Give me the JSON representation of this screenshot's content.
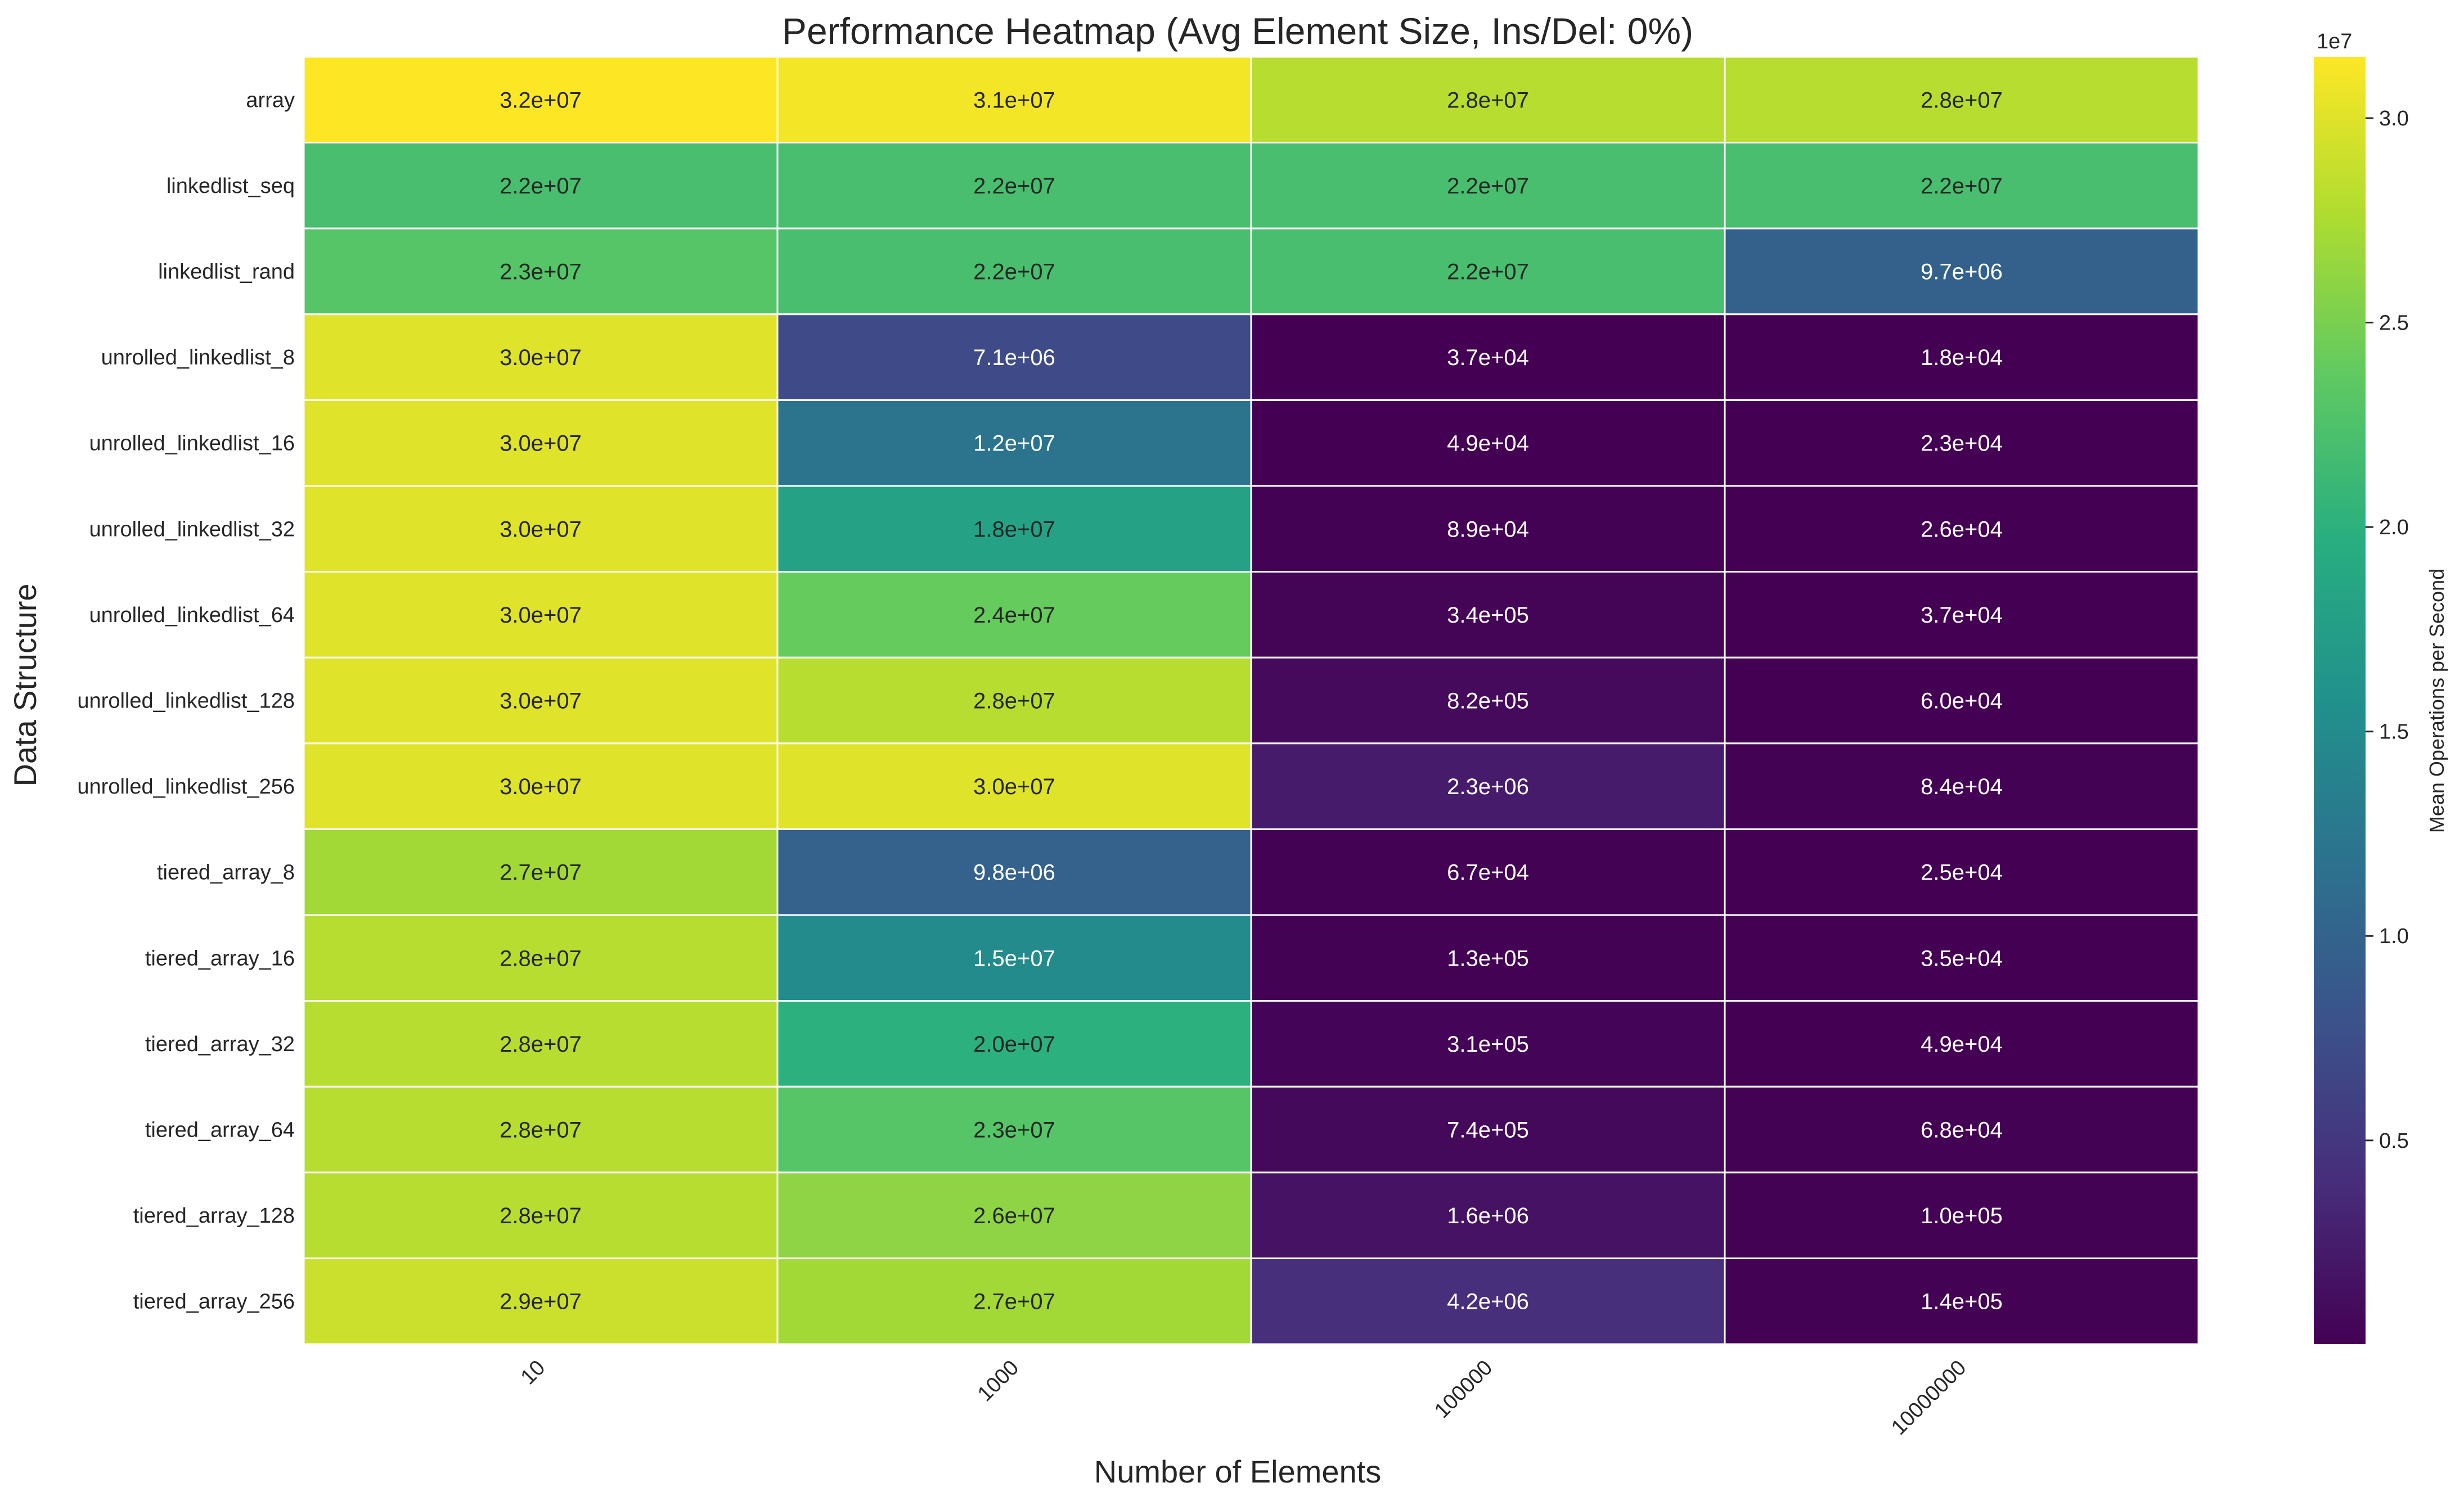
{
  "chart_data": {
    "type": "heatmap",
    "title": "Performance Heatmap (Avg Element Size, Ins/Del: 0%)",
    "xlabel": "Number of Elements",
    "ylabel": "Data Structure",
    "colorbar_label": "Mean Operations per Second",
    "colorbar_exponent": "1e7",
    "colorbar_ticks": [
      "0.5",
      "1.0",
      "1.5",
      "2.0",
      "2.5",
      "3.0"
    ],
    "colorbar_tick_values": [
      5000000,
      10000000,
      15000000,
      20000000,
      25000000,
      30000000
    ],
    "colormap": "viridis",
    "vmin": 18000,
    "vmax": 31500000,
    "grid": false,
    "x_categories": [
      "10",
      "1000",
      "100000",
      "10000000"
    ],
    "y_categories": [
      "array",
      "linkedlist_seq",
      "linkedlist_rand",
      "unrolled_linkedlist_8",
      "unrolled_linkedlist_16",
      "unrolled_linkedlist_32",
      "unrolled_linkedlist_64",
      "unrolled_linkedlist_128",
      "unrolled_linkedlist_256",
      "tiered_array_8",
      "tiered_array_16",
      "tiered_array_32",
      "tiered_array_64",
      "tiered_array_128",
      "tiered_array_256"
    ],
    "values": [
      [
        32000000,
        31000000,
        28000000,
        28000000
      ],
      [
        22000000,
        22000000,
        22000000,
        22000000
      ],
      [
        23000000,
        22000000,
        22000000,
        9700000
      ],
      [
        30000000,
        7100000,
        37000,
        18000
      ],
      [
        30000000,
        12000000,
        49000,
        23000
      ],
      [
        30000000,
        18000000,
        89000,
        26000
      ],
      [
        30000000,
        24000000,
        340000,
        37000
      ],
      [
        30000000,
        28000000,
        820000,
        60000
      ],
      [
        30000000,
        30000000,
        2300000,
        84000
      ],
      [
        27000000,
        9800000,
        67000,
        25000
      ],
      [
        28000000,
        15000000,
        130000,
        35000
      ],
      [
        28000000,
        20000000,
        310000,
        49000
      ],
      [
        28000000,
        23000000,
        740000,
        68000
      ],
      [
        28000000,
        26000000,
        1600000,
        100000
      ],
      [
        29000000,
        27000000,
        4200000,
        140000
      ]
    ],
    "annotations": [
      [
        "3.2e+07",
        "3.1e+07",
        "2.8e+07",
        "2.8e+07"
      ],
      [
        "2.2e+07",
        "2.2e+07",
        "2.2e+07",
        "2.2e+07"
      ],
      [
        "2.3e+07",
        "2.2e+07",
        "2.2e+07",
        "9.7e+06"
      ],
      [
        "3.0e+07",
        "7.1e+06",
        "3.7e+04",
        "1.8e+04"
      ],
      [
        "3.0e+07",
        "1.2e+07",
        "4.9e+04",
        "2.3e+04"
      ],
      [
        "3.0e+07",
        "1.8e+07",
        "8.9e+04",
        "2.6e+04"
      ],
      [
        "3.0e+07",
        "2.4e+07",
        "3.4e+05",
        "3.7e+04"
      ],
      [
        "3.0e+07",
        "2.8e+07",
        "8.2e+05",
        "6.0e+04"
      ],
      [
        "3.0e+07",
        "3.0e+07",
        "2.3e+06",
        "8.4e+04"
      ],
      [
        "2.7e+07",
        "9.8e+06",
        "6.7e+04",
        "2.5e+04"
      ],
      [
        "2.8e+07",
        "1.5e+07",
        "1.3e+05",
        "3.5e+04"
      ],
      [
        "2.8e+07",
        "2.0e+07",
        "3.1e+05",
        "4.9e+04"
      ],
      [
        "2.8e+07",
        "2.3e+07",
        "7.4e+05",
        "6.8e+04"
      ],
      [
        "2.8e+07",
        "2.6e+07",
        "1.6e+06",
        "1.0e+05"
      ],
      [
        "2.9e+07",
        "2.7e+07",
        "4.2e+06",
        "1.4e+05"
      ]
    ]
  }
}
